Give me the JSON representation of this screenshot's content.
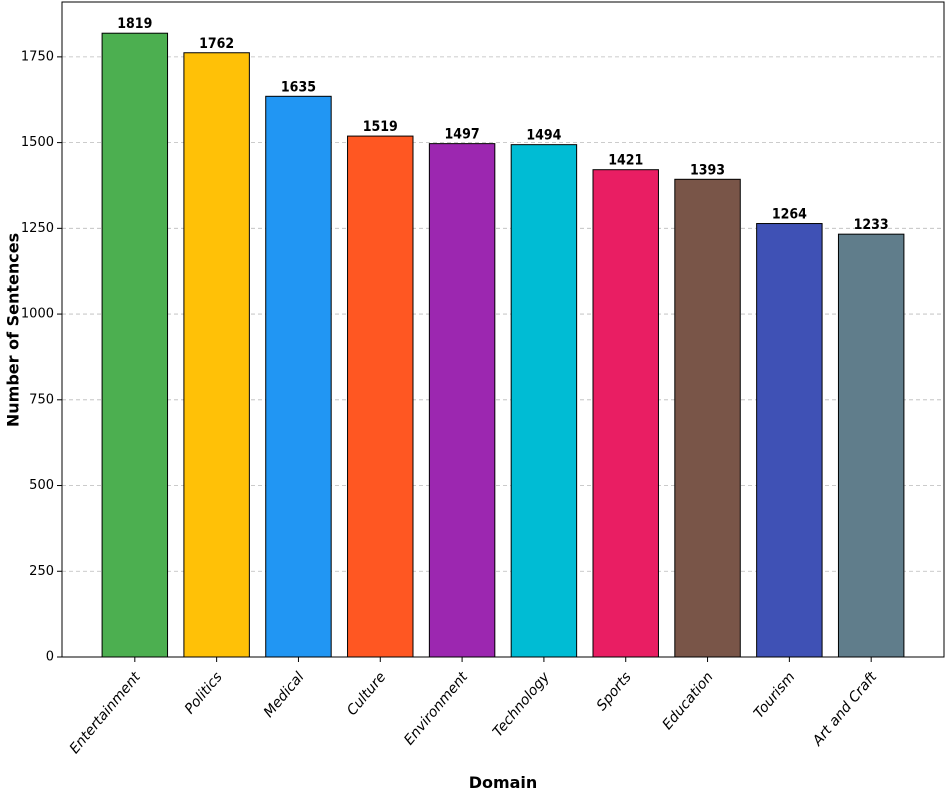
{
  "chart_data": {
    "type": "bar",
    "categories": [
      "Entertainment",
      "Politics",
      "Medical",
      "Culture",
      "Environment",
      "Technology",
      "Sports",
      "Education",
      "Tourism",
      "Art and Craft"
    ],
    "values": [
      1819,
      1762,
      1635,
      1519,
      1497,
      1494,
      1421,
      1393,
      1264,
      1233
    ],
    "colors": [
      "#4caf50",
      "#ffc107",
      "#2196f3",
      "#ff5722",
      "#9c27b0",
      "#00bcd4",
      "#e91e63",
      "#795548",
      "#3f51b5",
      "#607d8b"
    ],
    "x_label": "Domain",
    "y_label": "Number of Sentences",
    "ylim": [
      0,
      1910
    ],
    "yticks": [
      0,
      250,
      500,
      750,
      1000,
      1250,
      1500,
      1750
    ],
    "grid": true
  }
}
